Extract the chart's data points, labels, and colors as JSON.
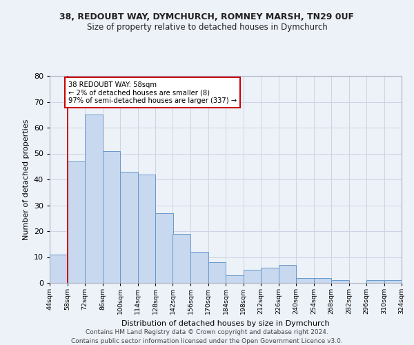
{
  "title1": "38, REDOUBT WAY, DYMCHURCH, ROMNEY MARSH, TN29 0UF",
  "title2": "Size of property relative to detached houses in Dymchurch",
  "xlabel": "Distribution of detached houses by size in Dymchurch",
  "ylabel": "Number of detached properties",
  "bin_labels": [
    "44sqm",
    "58sqm",
    "72sqm",
    "86sqm",
    "100sqm",
    "114sqm",
    "128sqm",
    "142sqm",
    "156sqm",
    "170sqm",
    "184sqm",
    "198sqm",
    "212sqm",
    "226sqm",
    "240sqm",
    "254sqm",
    "268sqm",
    "282sqm",
    "296sqm",
    "310sqm",
    "324sqm"
  ],
  "bin_lefts": [
    44,
    58,
    72,
    86,
    100,
    114,
    128,
    142,
    156,
    170,
    184,
    198,
    212,
    226,
    240,
    254,
    268,
    282,
    296,
    310
  ],
  "bin_width": 14,
  "values": [
    11,
    47,
    65,
    51,
    43,
    42,
    27,
    19,
    12,
    8,
    3,
    5,
    6,
    7,
    2,
    2,
    1,
    0,
    1,
    1
  ],
  "bar_color": "#c8d8ee",
  "bar_edge_color": "#6699cc",
  "red_line_x": 58,
  "annotation_title": "38 REDOUBT WAY: 58sqm",
  "annotation_line1": "← 2% of detached houses are smaller (8)",
  "annotation_line2": "97% of semi-detached houses are larger (337) →",
  "annotation_box_color": "#ffffff",
  "annotation_border_color": "#cc0000",
  "red_line_color": "#cc0000",
  "ylim": [
    0,
    80
  ],
  "yticks": [
    0,
    10,
    20,
    30,
    40,
    50,
    60,
    70,
    80
  ],
  "grid_color": "#cdd5e5",
  "footer1": "Contains HM Land Registry data © Crown copyright and database right 2024.",
  "footer2": "Contains public sector information licensed under the Open Government Licence v3.0.",
  "bg_color": "#edf1f8"
}
